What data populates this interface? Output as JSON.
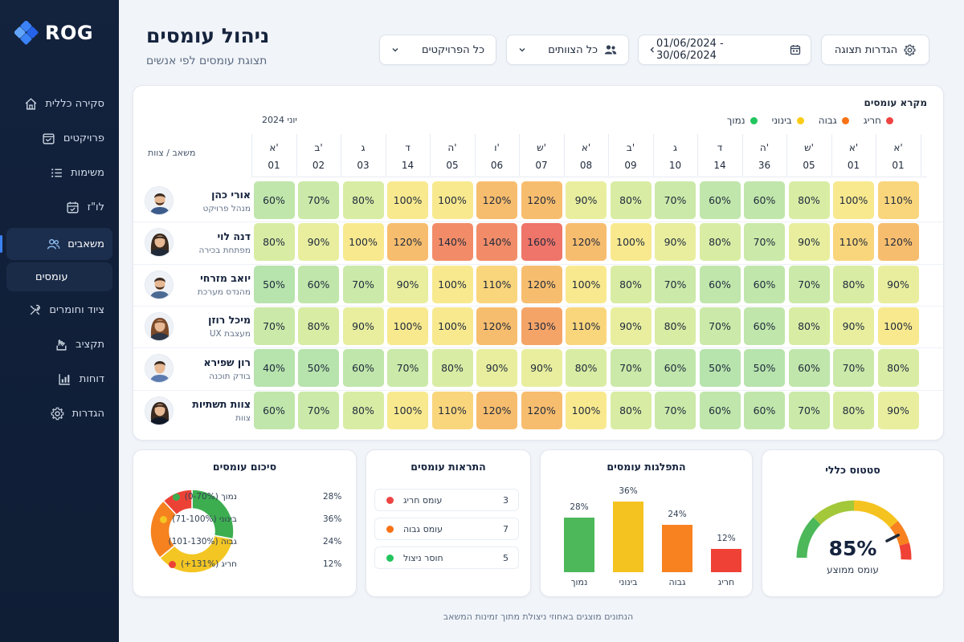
{
  "app": {
    "logo_text": "ROG"
  },
  "sidebar": {
    "items": [
      {
        "label": "סקירה כללית",
        "icon": "home-icon"
      },
      {
        "label": "פרויקטים",
        "icon": "projects-icon"
      },
      {
        "label": "משימות",
        "icon": "tasks-icon"
      },
      {
        "label": "לו\"ז",
        "icon": "calendar-icon"
      },
      {
        "label": "משאבים",
        "icon": "users-icon"
      },
      {
        "label": "עומסים",
        "icon": ""
      },
      {
        "label": "ציוד וחומרים",
        "icon": "tools-icon"
      },
      {
        "label": "תקציב",
        "icon": "budget-icon"
      },
      {
        "label": "דוחות",
        "icon": "reports-icon"
      },
      {
        "label": "הגדרות",
        "icon": "settings-icon"
      }
    ],
    "active_index": 4,
    "active_sub_index": 5
  },
  "header": {
    "title": "ניהול עומסים",
    "subtitle": "תצוגת עומסים לפי אנשים",
    "view_settings_label": "הגדרות תצוגה",
    "date_range": "01/06/2024 - 30/06/2024",
    "teams_filter": "כל הצוותים",
    "projects_filter": "כל הפרויקטים"
  },
  "heatmap": {
    "legend_title": "מקרא עומסים",
    "legend": [
      {
        "label": "חריג",
        "color": "#ef4444"
      },
      {
        "label": "גבוה",
        "color": "#f97316"
      },
      {
        "label": "בינוני",
        "color": "#facc15"
      },
      {
        "label": "נמוך",
        "color": "#22c55e"
      }
    ],
    "month_label": "יוני 2024",
    "resource_header": "משאב / צוות",
    "days": [
      {
        "dow": "א'",
        "date": "01"
      },
      {
        "dow": "ב'",
        "date": "02"
      },
      {
        "dow": "ג",
        "date": "03"
      },
      {
        "dow": "ד",
        "date": "14"
      },
      {
        "dow": "ה'",
        "date": "05"
      },
      {
        "dow": "ו'",
        "date": "06"
      },
      {
        "dow": "ש'",
        "date": "07"
      },
      {
        "dow": "א'",
        "date": "08"
      },
      {
        "dow": "ב'",
        "date": "09"
      },
      {
        "dow": "ג",
        "date": "10"
      },
      {
        "dow": "ד",
        "date": "14"
      },
      {
        "dow": "ה'",
        "date": "36"
      },
      {
        "dow": "ש'",
        "date": "05"
      },
      {
        "dow": "א'",
        "date": "01"
      },
      {
        "dow": "א'",
        "date": "01"
      }
    ],
    "rows": [
      {
        "name": "אורי כהן",
        "role": "מנהל פרויקט",
        "values": [
          "60%",
          "70%",
          "80%",
          "100%",
          "100%",
          "120%",
          "120%",
          "90%",
          "80%",
          "70%",
          "60%",
          "60%",
          "80%",
          "100%",
          "110%"
        ]
      },
      {
        "name": "דנה לוי",
        "role": "מפתחת בכירה",
        "values": [
          "80%",
          "90%",
          "100%",
          "120%",
          "140%",
          "140%",
          "160%",
          "120%",
          "100%",
          "90%",
          "80%",
          "70%",
          "90%",
          "110%",
          "120%"
        ]
      },
      {
        "name": "יואב מזרחי",
        "role": "מהנדס מערכת",
        "values": [
          "50%",
          "60%",
          "70%",
          "90%",
          "100%",
          "110%",
          "120%",
          "100%",
          "80%",
          "70%",
          "60%",
          "60%",
          "70%",
          "80%",
          "90%"
        ]
      },
      {
        "name": "מיכל רוזן",
        "role": "מעצבת UX",
        "values": [
          "70%",
          "80%",
          "90%",
          "100%",
          "100%",
          "120%",
          "130%",
          "110%",
          "90%",
          "80%",
          "70%",
          "60%",
          "80%",
          "90%",
          "100%"
        ]
      },
      {
        "name": "רון שפירא",
        "role": "בודק תוכנה",
        "values": [
          "40%",
          "50%",
          "60%",
          "70%",
          "80%",
          "90%",
          "90%",
          "80%",
          "70%",
          "60%",
          "50%",
          "50%",
          "60%",
          "70%",
          "80%"
        ]
      },
      {
        "name": "צוות תשתיות",
        "role": "צוות",
        "values": [
          "60%",
          "70%",
          "80%",
          "100%",
          "110%",
          "120%",
          "120%",
          "100%",
          "80%",
          "70%",
          "60%",
          "60%",
          "70%",
          "80%",
          "90%"
        ]
      }
    ]
  },
  "summary": {
    "title": "סיכום עומסים",
    "items": [
      {
        "label": "נמוך (0-70%)",
        "pct": "28%",
        "value": 28,
        "color": "#3dae50"
      },
      {
        "label": "בינוני (71-100%)",
        "pct": "36%",
        "value": 36,
        "color": "#f3c623"
      },
      {
        "label": "גבוה (101-130%)",
        "pct": "24%",
        "value": 24,
        "color": "#f5821f"
      },
      {
        "label": "חריג (131%+)",
        "pct": "12%",
        "value": 12,
        "color": "#ec4236"
      }
    ]
  },
  "alerts": {
    "title": "התראות עומסים",
    "items": [
      {
        "label": "עומס חריג",
        "count": "3",
        "color": "#ef4444"
      },
      {
        "label": "עומס גבוה",
        "count": "7",
        "color": "#f97316"
      },
      {
        "label": "חוסר ניצול",
        "count": "5",
        "color": "#22c55e"
      }
    ]
  },
  "chart_data": {
    "type": "bar",
    "title": "התפלגות עומסים",
    "categories": [
      "נמוך",
      "בינוני",
      "גבוה",
      "חריג"
    ],
    "values": [
      28,
      36,
      24,
      12
    ],
    "labels": [
      "28%",
      "36%",
      "24%",
      "12%"
    ],
    "colors": [
      "#4cb85a",
      "#f5c320",
      "#f7821f",
      "#ef4136"
    ],
    "ylim": [
      0,
      36
    ]
  },
  "status": {
    "title": "סטטוס כללי",
    "value_label": "85%",
    "value": 85,
    "caption": "עומס ממוצע"
  },
  "footer": "הנתונים מוצגים באחוזי ניצולת מתוך זמינות המשאב"
}
